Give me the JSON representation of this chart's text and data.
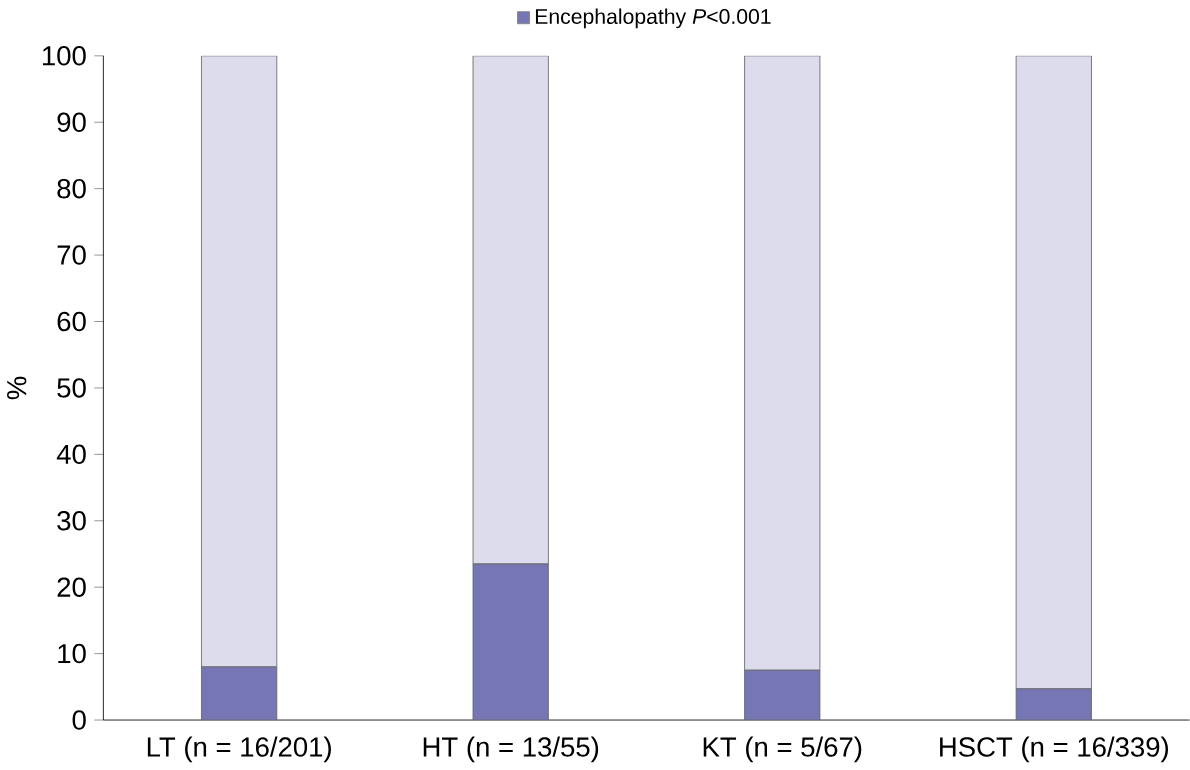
{
  "chart_data": {
    "type": "bar",
    "stacked": true,
    "ylabel": "%",
    "categories": [
      "LT (n = 16/201)",
      "HT (n = 13/55)",
      "KT (n = 5/67)",
      "HSCT (n = 16/339)"
    ],
    "series": [
      {
        "name": "Encephalopathy *P*<0.001",
        "color": "#7676b4",
        "values": [
          8,
          23.5,
          7.5,
          4.7
        ]
      },
      {
        "color": "#dcdcec",
        "values": [
          92,
          76.5,
          92.5,
          95.3
        ]
      }
    ],
    "ylim": [
      0,
      100
    ],
    "yticks": [
      0,
      10,
      20,
      30,
      40,
      50,
      60,
      70,
      80,
      90,
      100
    ],
    "legend": "top",
    "grid": false
  }
}
